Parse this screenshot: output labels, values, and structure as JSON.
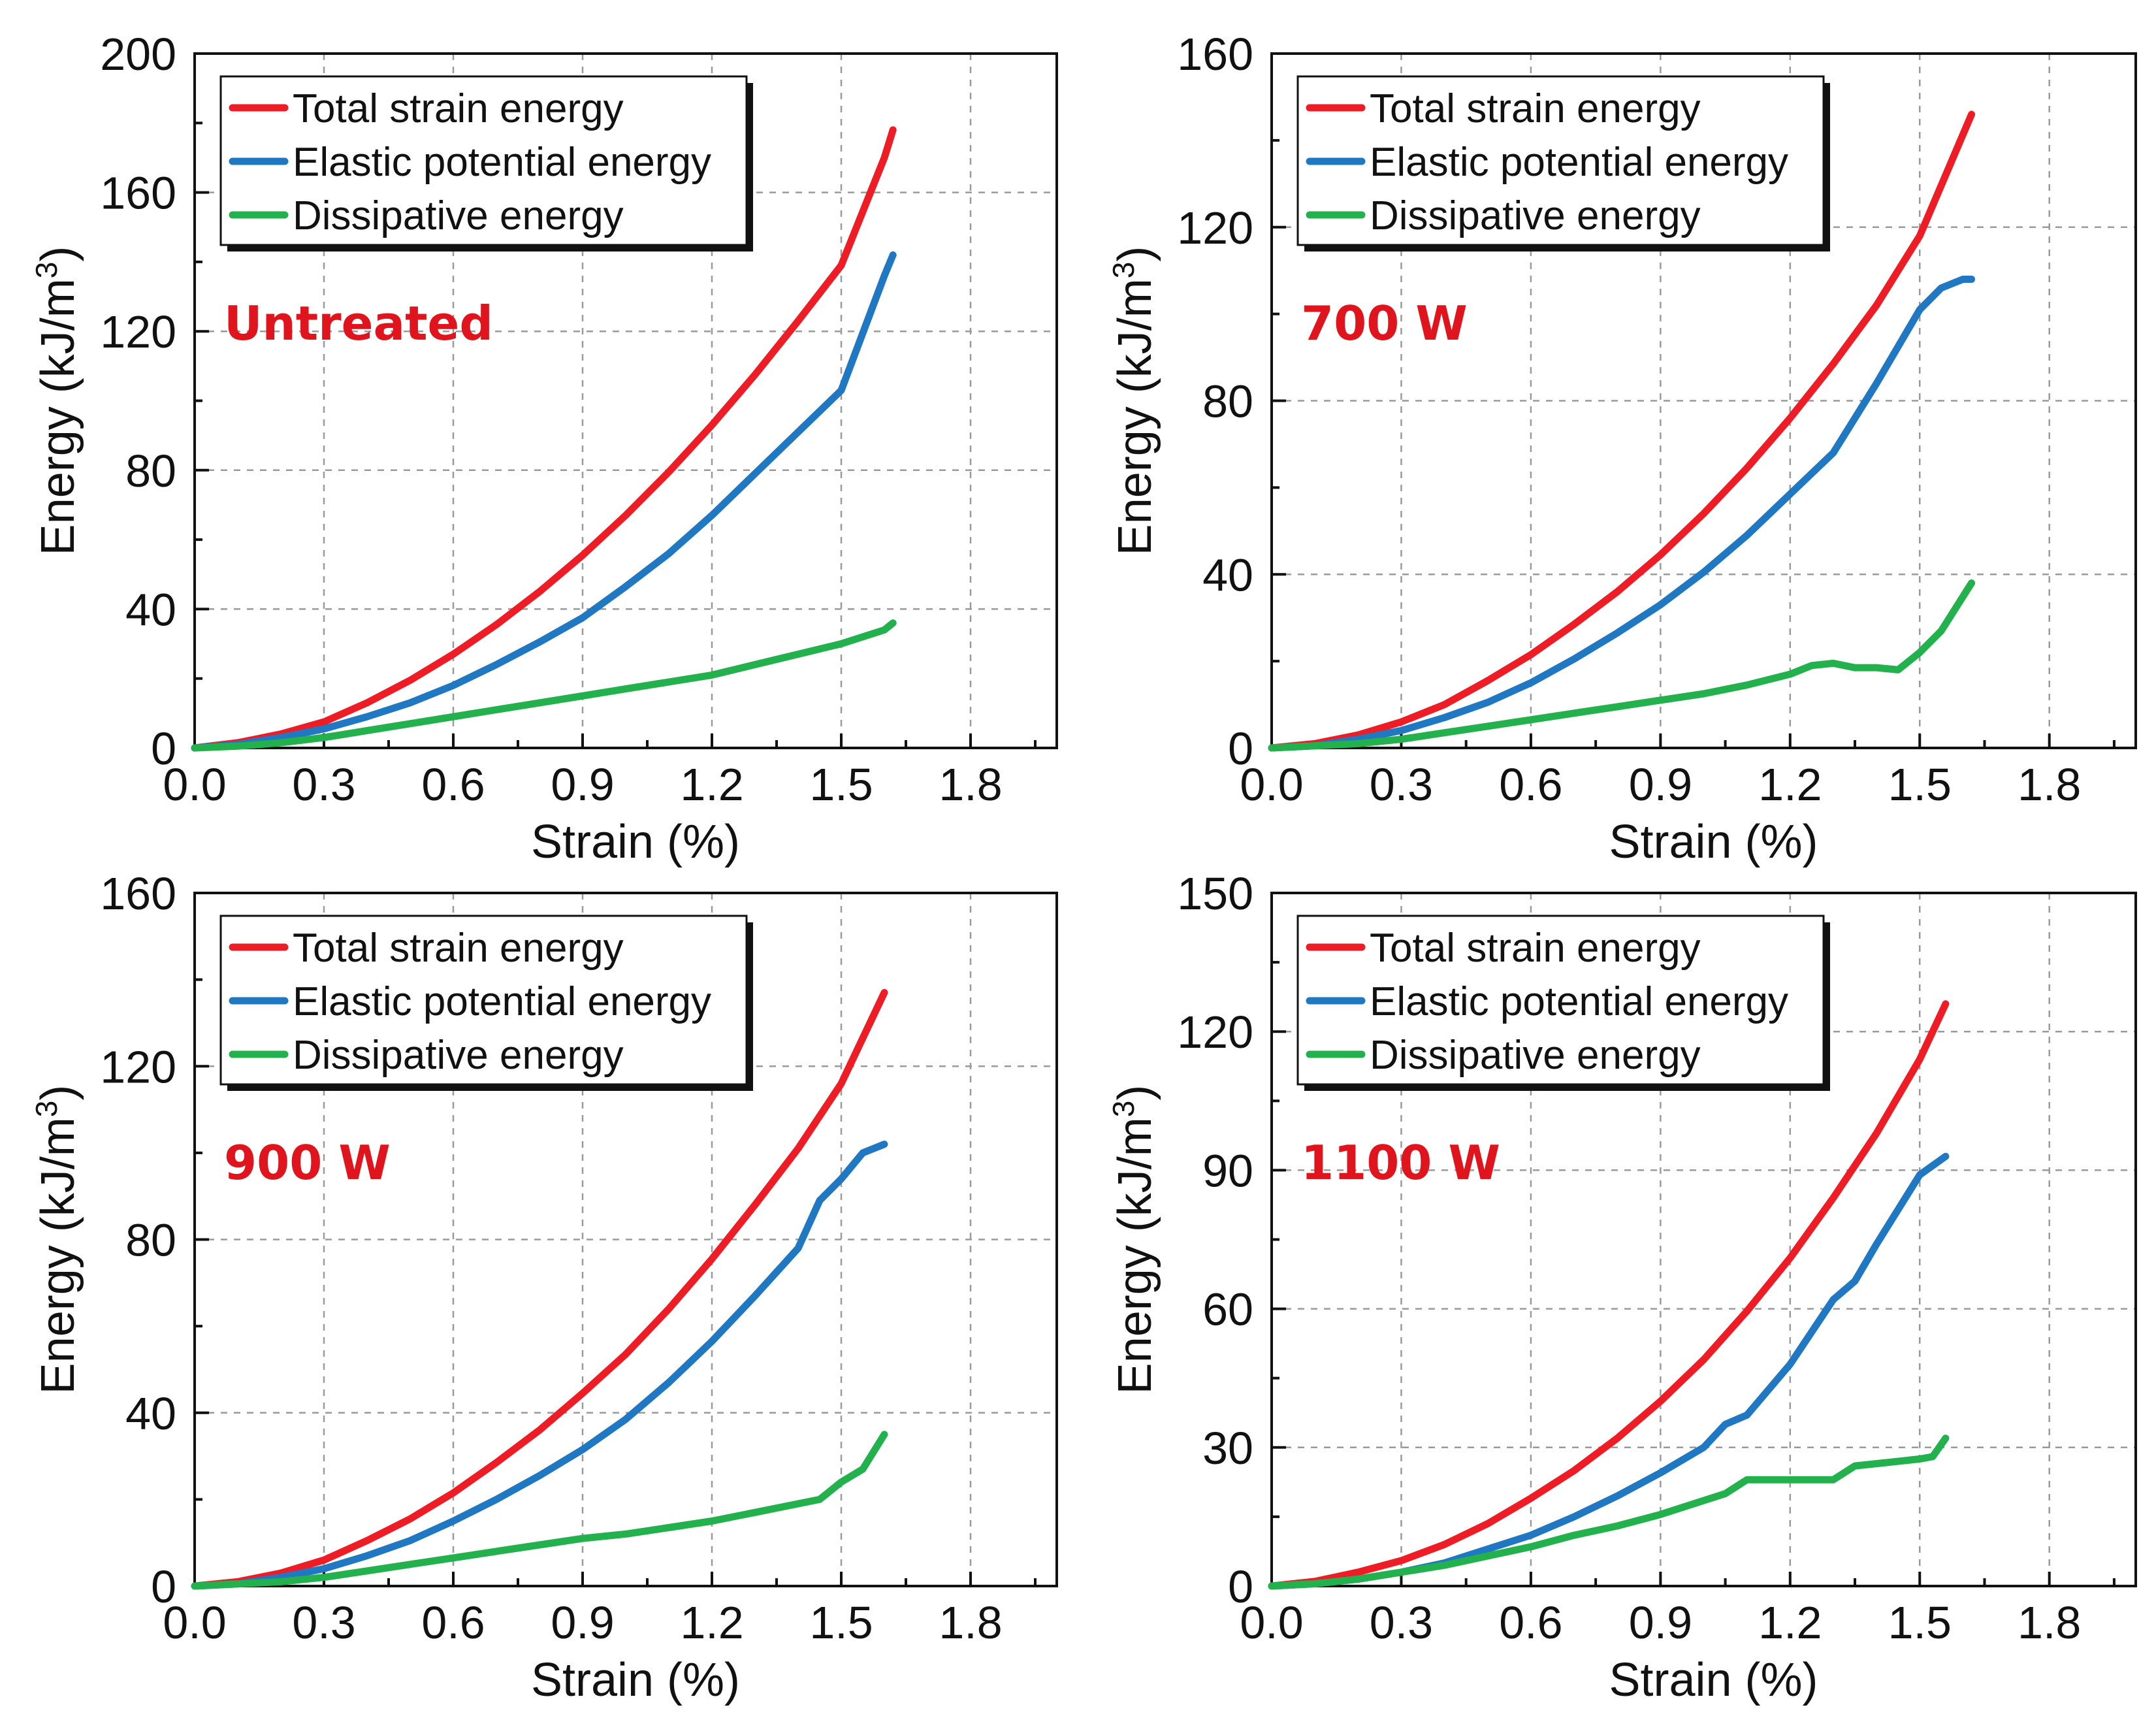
{
  "colors": {
    "total": "#ee1c25",
    "elastic": "#1f78c1",
    "dissipative": "#22b14c",
    "label": "#e0141c"
  },
  "chart_data": [
    {
      "type": "line",
      "panel_label": "Untreated",
      "xlabel": "Strain (%)",
      "ylabel": "Energy (kJ/m3)",
      "xlim": [
        0,
        2.0
      ],
      "ylim": [
        0,
        200
      ],
      "xticks": [
        0.0,
        0.3,
        0.6,
        0.9,
        1.2,
        1.5,
        1.8
      ],
      "xtick_labels": [
        "0.0",
        "0.3",
        "0.6",
        "0.9",
        "1.2",
        "1.5",
        "1.8"
      ],
      "yticks": [
        0,
        40,
        80,
        120,
        160,
        200
      ],
      "ytick_labels": [
        "0",
        "40",
        "80",
        "120",
        "160",
        "200"
      ],
      "legend": [
        "Total strain energy",
        "Elastic potential energy",
        "Dissipative energy"
      ],
      "series": [
        {
          "name": "Total strain energy",
          "color_key": "total",
          "x": [
            0,
            0.1,
            0.2,
            0.3,
            0.4,
            0.5,
            0.6,
            0.7,
            0.8,
            0.9,
            1.0,
            1.1,
            1.2,
            1.3,
            1.4,
            1.5,
            1.6,
            1.62
          ],
          "y": [
            0,
            1.5,
            4,
            7.5,
            13,
            19.5,
            27,
            35.5,
            45,
            55.5,
            67,
            79.5,
            93,
            107.5,
            123,
            139,
            170,
            178
          ]
        },
        {
          "name": "Elastic potential energy",
          "color_key": "elastic",
          "x": [
            0,
            0.1,
            0.2,
            0.3,
            0.4,
            0.5,
            0.6,
            0.7,
            0.8,
            0.9,
            1.0,
            1.1,
            1.2,
            1.3,
            1.4,
            1.5,
            1.6,
            1.62
          ],
          "y": [
            0,
            1,
            3,
            5.5,
            9,
            13,
            18,
            24,
            30.5,
            37.5,
            46.5,
            56,
            67,
            79,
            91,
            103,
            136,
            142
          ]
        },
        {
          "name": "Dissipative energy",
          "color_key": "dissipative",
          "x": [
            0,
            0.1,
            0.2,
            0.3,
            0.4,
            0.5,
            0.6,
            0.7,
            0.8,
            0.9,
            1.0,
            1.1,
            1.2,
            1.3,
            1.4,
            1.5,
            1.6,
            1.62
          ],
          "y": [
            0,
            0.5,
            1.5,
            3,
            5,
            7,
            9,
            11,
            13,
            15,
            17,
            19,
            21,
            24,
            27,
            30,
            34,
            36
          ]
        }
      ]
    },
    {
      "type": "line",
      "panel_label": "700 W",
      "xlabel": "Strain (%)",
      "ylabel": "Energy (kJ/m3)",
      "xlim": [
        0,
        2.0
      ],
      "ylim": [
        0,
        160
      ],
      "xticks": [
        0.0,
        0.3,
        0.6,
        0.9,
        1.2,
        1.5,
        1.8
      ],
      "xtick_labels": [
        "0.0",
        "0.3",
        "0.6",
        "0.9",
        "1.2",
        "1.5",
        "1.8"
      ],
      "yticks": [
        0,
        40,
        80,
        120,
        160
      ],
      "ytick_labels": [
        "0",
        "40",
        "80",
        "120",
        "160"
      ],
      "legend": [
        "Total strain energy",
        "Elastic potential energy",
        "Dissipative energy"
      ],
      "series": [
        {
          "name": "Total strain energy",
          "color_key": "total",
          "x": [
            0,
            0.1,
            0.2,
            0.3,
            0.4,
            0.5,
            0.6,
            0.7,
            0.8,
            0.9,
            1.0,
            1.1,
            1.2,
            1.3,
            1.4,
            1.5,
            1.62
          ],
          "y": [
            0,
            1,
            3,
            6,
            10,
            15.5,
            21.5,
            28.5,
            36,
            44.5,
            54,
            64.5,
            76,
            88.5,
            102,
            118,
            146
          ]
        },
        {
          "name": "Elastic potential energy",
          "color_key": "elastic",
          "x": [
            0,
            0.1,
            0.2,
            0.3,
            0.4,
            0.5,
            0.6,
            0.7,
            0.8,
            0.9,
            1.0,
            1.1,
            1.2,
            1.3,
            1.4,
            1.5,
            1.55,
            1.6,
            1.62
          ],
          "y": [
            0,
            0.5,
            2,
            4,
            7,
            10.5,
            15,
            20.5,
            26.5,
            33,
            40.5,
            49,
            58.5,
            68,
            84,
            101,
            106,
            108,
            108
          ]
        },
        {
          "name": "Dissipative energy",
          "color_key": "dissipative",
          "x": [
            0,
            0.1,
            0.2,
            0.3,
            0.4,
            0.5,
            0.6,
            0.7,
            0.8,
            0.9,
            1.0,
            1.1,
            1.2,
            1.25,
            1.3,
            1.35,
            1.4,
            1.45,
            1.5,
            1.55,
            1.62
          ],
          "y": [
            0,
            0.5,
            1,
            2,
            3.5,
            5,
            6.5,
            8,
            9.5,
            11,
            12.5,
            14.5,
            17,
            19,
            19.5,
            18.5,
            18.5,
            18,
            22,
            27,
            38
          ]
        }
      ]
    },
    {
      "type": "line",
      "panel_label": "900 W",
      "xlabel": "Strain (%)",
      "ylabel": "Energy (kJ/m3)",
      "xlim": [
        0,
        2.0
      ],
      "ylim": [
        0,
        160
      ],
      "xticks": [
        0.0,
        0.3,
        0.6,
        0.9,
        1.2,
        1.5,
        1.8
      ],
      "xtick_labels": [
        "0.0",
        "0.3",
        "0.6",
        "0.9",
        "1.2",
        "1.5",
        "1.8"
      ],
      "yticks": [
        0,
        40,
        80,
        120,
        160
      ],
      "ytick_labels": [
        "0",
        "40",
        "80",
        "120",
        "160"
      ],
      "legend": [
        "Total strain energy",
        "Elastic potential energy",
        "Dissipative energy"
      ],
      "series": [
        {
          "name": "Total strain energy",
          "color_key": "total",
          "x": [
            0,
            0.1,
            0.2,
            0.3,
            0.4,
            0.5,
            0.6,
            0.7,
            0.8,
            0.9,
            1.0,
            1.1,
            1.2,
            1.3,
            1.4,
            1.5,
            1.6
          ],
          "y": [
            0,
            1,
            3,
            6,
            10.5,
            15.5,
            21.5,
            28.5,
            36,
            44.5,
            53.5,
            64,
            75.5,
            88,
            101,
            116,
            137
          ]
        },
        {
          "name": "Elastic potential energy",
          "color_key": "elastic",
          "x": [
            0,
            0.1,
            0.2,
            0.3,
            0.4,
            0.5,
            0.6,
            0.7,
            0.8,
            0.9,
            1.0,
            1.1,
            1.2,
            1.3,
            1.4,
            1.45,
            1.5,
            1.55,
            1.6
          ],
          "y": [
            0,
            0.5,
            2,
            4,
            7,
            10.5,
            15,
            20,
            25.5,
            31.5,
            38.5,
            47,
            56.5,
            67,
            78,
            89,
            94,
            100,
            102
          ]
        },
        {
          "name": "Dissipative energy",
          "color_key": "dissipative",
          "x": [
            0,
            0.1,
            0.2,
            0.3,
            0.4,
            0.5,
            0.6,
            0.7,
            0.8,
            0.9,
            1.0,
            1.1,
            1.2,
            1.3,
            1.4,
            1.45,
            1.5,
            1.55,
            1.6
          ],
          "y": [
            0,
            0.5,
            1,
            2,
            3.5,
            5,
            6.5,
            8,
            9.5,
            11,
            12,
            13.5,
            15,
            17,
            19,
            20,
            24,
            27,
            35
          ]
        }
      ]
    },
    {
      "type": "line",
      "panel_label": "1100 W",
      "xlabel": "Strain (%)",
      "ylabel": "Energy (kJ/m3)",
      "xlim": [
        0,
        2.0
      ],
      "ylim": [
        0,
        150
      ],
      "xticks": [
        0.0,
        0.3,
        0.6,
        0.9,
        1.2,
        1.5,
        1.8
      ],
      "xtick_labels": [
        "0.0",
        "0.3",
        "0.6",
        "0.9",
        "1.2",
        "1.5",
        "1.8"
      ],
      "yticks": [
        0,
        30,
        60,
        90,
        120,
        150
      ],
      "ytick_labels": [
        "0",
        "30",
        "60",
        "90",
        "120",
        "150"
      ],
      "legend": [
        "Total strain energy",
        "Elastic potential energy",
        "Dissipative energy"
      ],
      "series": [
        {
          "name": "Total strain energy",
          "color_key": "total",
          "x": [
            0,
            0.1,
            0.2,
            0.3,
            0.4,
            0.5,
            0.6,
            0.7,
            0.8,
            0.9,
            1.0,
            1.1,
            1.2,
            1.3,
            1.4,
            1.5,
            1.56
          ],
          "y": [
            0,
            1,
            3,
            5.5,
            9,
            13.5,
            19,
            25,
            32,
            40,
            49,
            59.5,
            71,
            84,
            98,
            114,
            126
          ]
        },
        {
          "name": "Elastic potential energy",
          "color_key": "elastic",
          "x": [
            0,
            0.1,
            0.2,
            0.3,
            0.4,
            0.5,
            0.6,
            0.7,
            0.8,
            0.9,
            1.0,
            1.05,
            1.1,
            1.2,
            1.3,
            1.35,
            1.4,
            1.5,
            1.56
          ],
          "y": [
            0,
            0.5,
            1.5,
            3,
            5,
            8,
            11,
            15,
            19.5,
            24.5,
            30,
            35,
            37,
            48,
            62,
            66,
            74,
            89,
            93
          ]
        },
        {
          "name": "Dissipative energy",
          "color_key": "dissipative",
          "x": [
            0,
            0.1,
            0.2,
            0.3,
            0.4,
            0.5,
            0.6,
            0.7,
            0.8,
            0.9,
            1.0,
            1.05,
            1.1,
            1.2,
            1.3,
            1.35,
            1.4,
            1.5,
            1.53,
            1.56
          ],
          "y": [
            0,
            0.5,
            1.5,
            3,
            4.5,
            6.5,
            8.5,
            11,
            13,
            15.5,
            18.5,
            20,
            23,
            23,
            23,
            26,
            26.5,
            27.5,
            28,
            32
          ]
        }
      ]
    }
  ]
}
